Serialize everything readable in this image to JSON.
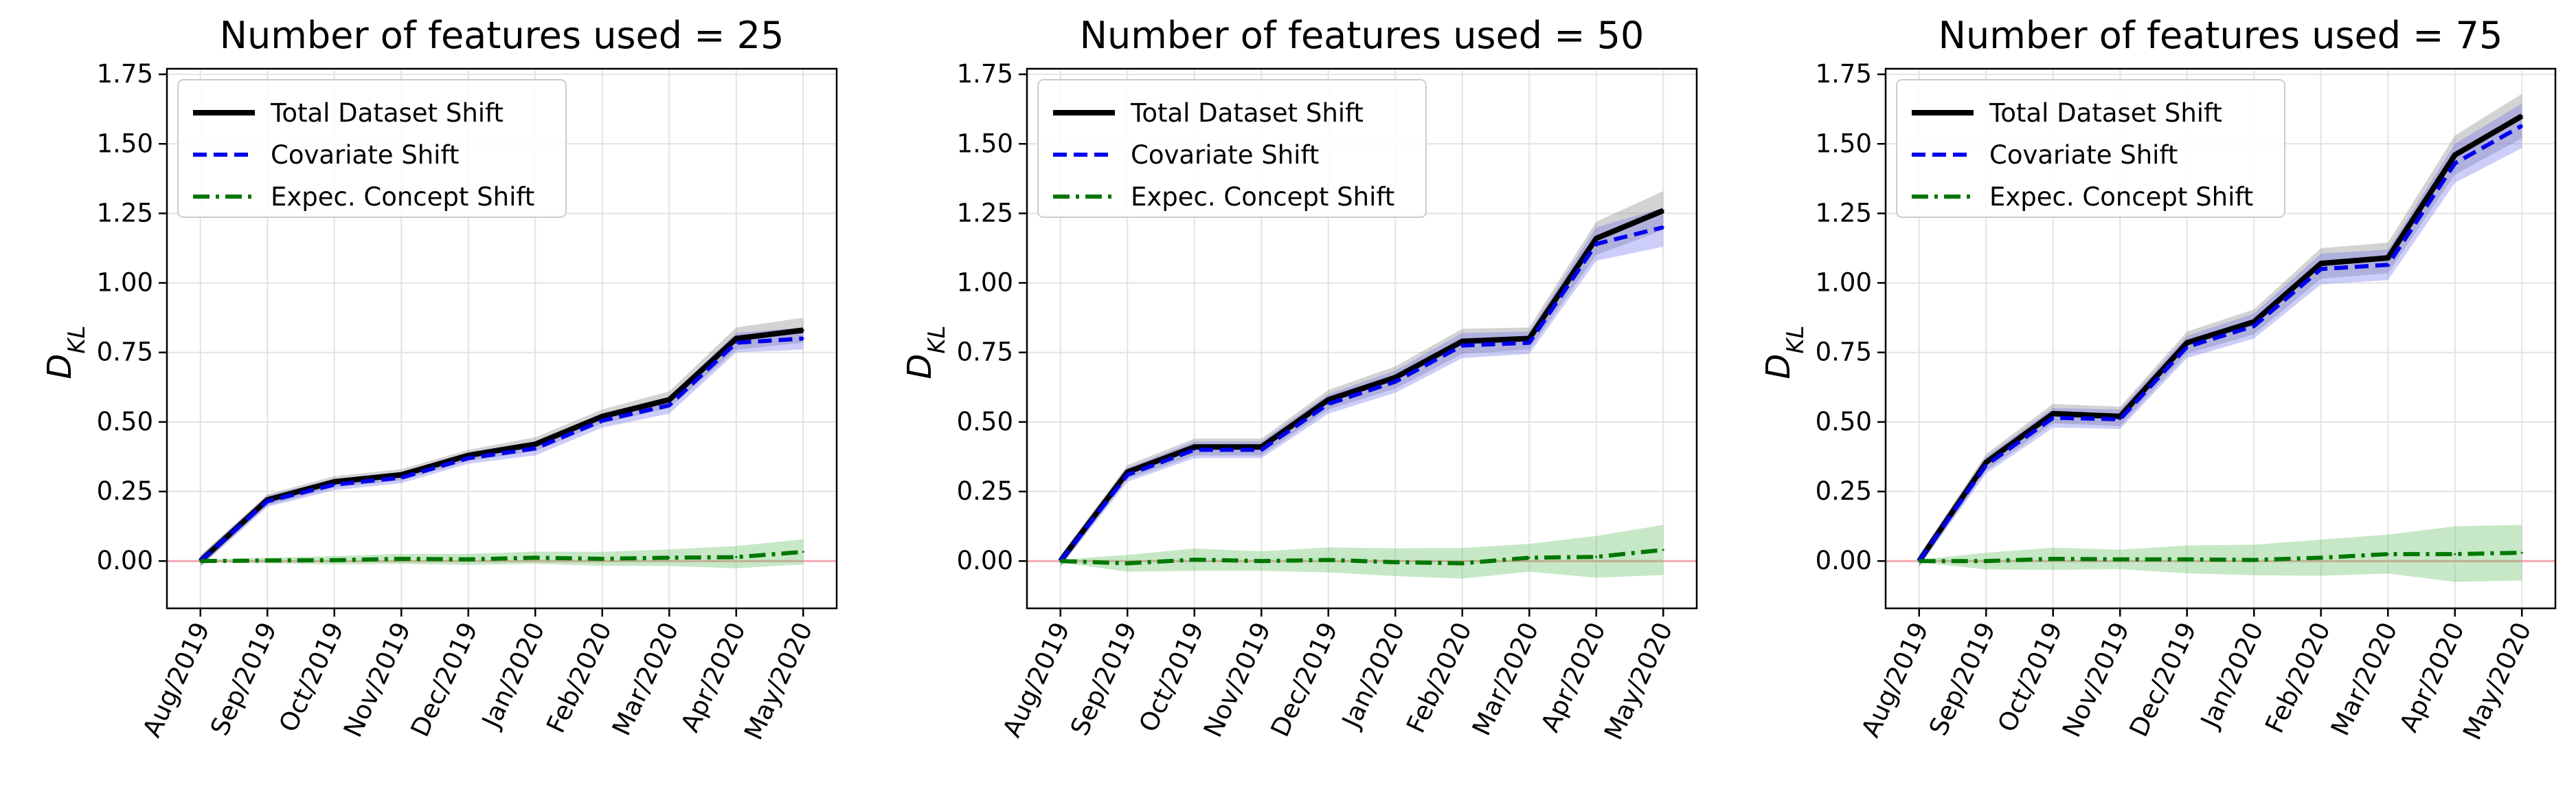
{
  "chart_data": [
    {
      "type": "line",
      "title": "Number of features used = 25",
      "ylabel": "D_KL",
      "ylim": [
        -0.17,
        1.77
      ],
      "yticks": [
        "0.00",
        "0.25",
        "0.50",
        "0.75",
        "1.00",
        "1.25",
        "1.50",
        "1.75"
      ],
      "categories": [
        "Aug/2019",
        "Sep/2019",
        "Oct/2019",
        "Nov/2019",
        "Dec/2019",
        "Jan/2020",
        "Feb/2020",
        "Mar/2020",
        "Apr/2020",
        "May/2020"
      ],
      "grid": true,
      "legend_position": "top-left",
      "reference_line": 0,
      "series": [
        {
          "name": "Total Dataset Shift",
          "style": "solid",
          "color": "#000000",
          "values": [
            0.0,
            0.22,
            0.285,
            0.31,
            0.38,
            0.42,
            0.52,
            0.58,
            0.8,
            0.83
          ],
          "band": [
            0.02,
            0.02,
            0.02,
            0.02,
            0.02,
            0.025,
            0.025,
            0.03,
            0.04,
            0.045
          ]
        },
        {
          "name": "Covariate Shift",
          "style": "dashed",
          "color": "#0000ee",
          "values": [
            0.0,
            0.215,
            0.275,
            0.3,
            0.37,
            0.405,
            0.505,
            0.56,
            0.785,
            0.8
          ],
          "band": [
            0.02,
            0.02,
            0.02,
            0.02,
            0.02,
            0.025,
            0.025,
            0.03,
            0.035,
            0.04
          ]
        },
        {
          "name": "Expec. Concept Shift",
          "style": "dashdot",
          "color": "#007700",
          "values": [
            0.0,
            0.002,
            0.003,
            0.008,
            0.006,
            0.012,
            0.008,
            0.012,
            0.014,
            0.033
          ],
          "band": [
            0.005,
            0.01,
            0.015,
            0.018,
            0.02,
            0.022,
            0.025,
            0.03,
            0.04,
            0.045
          ]
        }
      ]
    },
    {
      "type": "line",
      "title": "Number of features used = 50",
      "ylabel": "D_KL",
      "ylim": [
        -0.17,
        1.77
      ],
      "yticks": [
        "0.00",
        "0.25",
        "0.50",
        "0.75",
        "1.00",
        "1.25",
        "1.50",
        "1.75"
      ],
      "categories": [
        "Aug/2019",
        "Sep/2019",
        "Oct/2019",
        "Nov/2019",
        "Dec/2019",
        "Jan/2020",
        "Feb/2020",
        "Mar/2020",
        "Apr/2020",
        "May/2020"
      ],
      "grid": true,
      "legend_position": "top-left",
      "reference_line": 0,
      "series": [
        {
          "name": "Total Dataset Shift",
          "style": "solid",
          "color": "#000000",
          "values": [
            0.0,
            0.32,
            0.41,
            0.41,
            0.58,
            0.66,
            0.79,
            0.8,
            1.16,
            1.26
          ],
          "band": [
            0.02,
            0.025,
            0.03,
            0.03,
            0.035,
            0.04,
            0.045,
            0.04,
            0.06,
            0.07
          ]
        },
        {
          "name": "Covariate Shift",
          "style": "dashed",
          "color": "#0000ee",
          "values": [
            0.0,
            0.31,
            0.4,
            0.4,
            0.565,
            0.645,
            0.775,
            0.785,
            1.14,
            1.2
          ],
          "band": [
            0.02,
            0.025,
            0.03,
            0.03,
            0.035,
            0.04,
            0.045,
            0.04,
            0.06,
            0.07
          ]
        },
        {
          "name": "Expec. Concept Shift",
          "style": "dashdot",
          "color": "#007700",
          "values": [
            0.0,
            -0.008,
            0.005,
            0.0,
            0.004,
            -0.004,
            -0.008,
            0.012,
            0.015,
            0.04
          ],
          "band": [
            0.005,
            0.03,
            0.04,
            0.035,
            0.045,
            0.05,
            0.055,
            0.05,
            0.075,
            0.09
          ]
        }
      ]
    },
    {
      "type": "line",
      "title": "Number of features used = 75",
      "ylabel": "D_KL",
      "ylim": [
        -0.17,
        1.77
      ],
      "yticks": [
        "0.00",
        "0.25",
        "0.50",
        "0.75",
        "1.00",
        "1.25",
        "1.50",
        "1.75"
      ],
      "categories": [
        "Aug/2019",
        "Sep/2019",
        "Oct/2019",
        "Nov/2019",
        "Dec/2019",
        "Jan/2020",
        "Feb/2020",
        "Mar/2020",
        "Apr/2020",
        "May/2020"
      ],
      "grid": true,
      "legend_position": "top-left",
      "reference_line": 0,
      "series": [
        {
          "name": "Total Dataset Shift",
          "style": "solid",
          "color": "#000000",
          "values": [
            0.0,
            0.355,
            0.53,
            0.52,
            0.785,
            0.86,
            1.07,
            1.09,
            1.46,
            1.6
          ],
          "band": [
            0.02,
            0.03,
            0.035,
            0.035,
            0.04,
            0.045,
            0.055,
            0.055,
            0.07,
            0.08
          ]
        },
        {
          "name": "Covariate Shift",
          "style": "dashed",
          "color": "#0000ee",
          "values": [
            0.0,
            0.345,
            0.515,
            0.51,
            0.77,
            0.845,
            1.05,
            1.065,
            1.43,
            1.565
          ],
          "band": [
            0.02,
            0.03,
            0.035,
            0.035,
            0.04,
            0.045,
            0.055,
            0.055,
            0.07,
            0.08
          ]
        },
        {
          "name": "Expec. Concept Shift",
          "style": "dashdot",
          "color": "#007700",
          "values": [
            0.0,
            0.0,
            0.008,
            0.006,
            0.006,
            0.004,
            0.012,
            0.025,
            0.025,
            0.03
          ],
          "band": [
            0.005,
            0.03,
            0.04,
            0.035,
            0.05,
            0.055,
            0.065,
            0.07,
            0.1,
            0.1
          ]
        }
      ]
    }
  ]
}
